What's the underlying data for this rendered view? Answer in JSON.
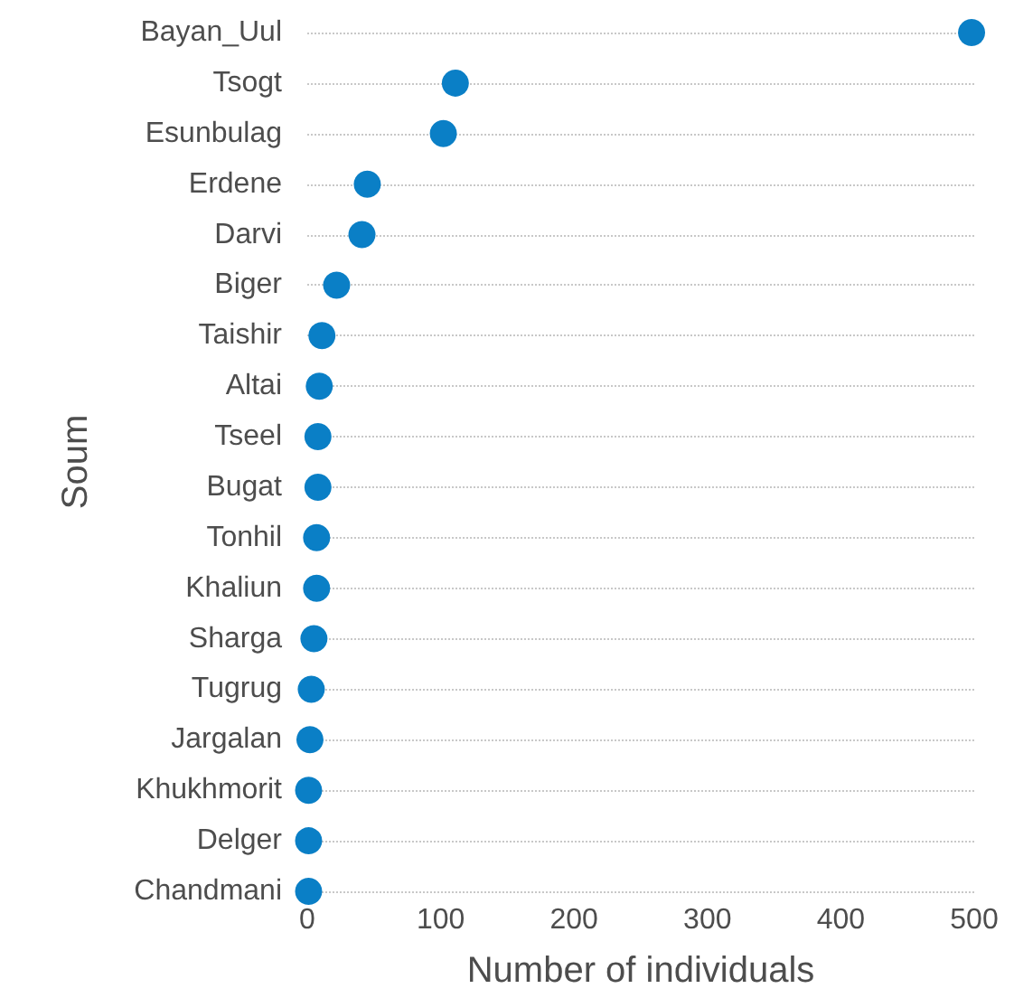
{
  "chart_data": {
    "type": "scatter",
    "orientation": "horizontal",
    "xlabel": "Number of individuals",
    "ylabel": "Soum",
    "categories": [
      "Bayan_Uul",
      "Tsogt",
      "Esunbulag",
      "Erdene",
      "Darvi",
      "Biger",
      "Taishir",
      "Altai",
      "Tseel",
      "Bugat",
      "Tonhil",
      "Khaliun",
      "Sharga",
      "Tugrug",
      "Jargalan",
      "Khukhmorit",
      "Delger",
      "Chandmani"
    ],
    "values": [
      498,
      111,
      102,
      45,
      41,
      22,
      11,
      9,
      8,
      8,
      7,
      7,
      5,
      3,
      2,
      1,
      1,
      1
    ],
    "color": "#0a7fc6",
    "marker": "circle",
    "xlim": [
      0,
      500
    ],
    "xticks": [
      0,
      100,
      200,
      300,
      400,
      500
    ],
    "grid": "y"
  }
}
